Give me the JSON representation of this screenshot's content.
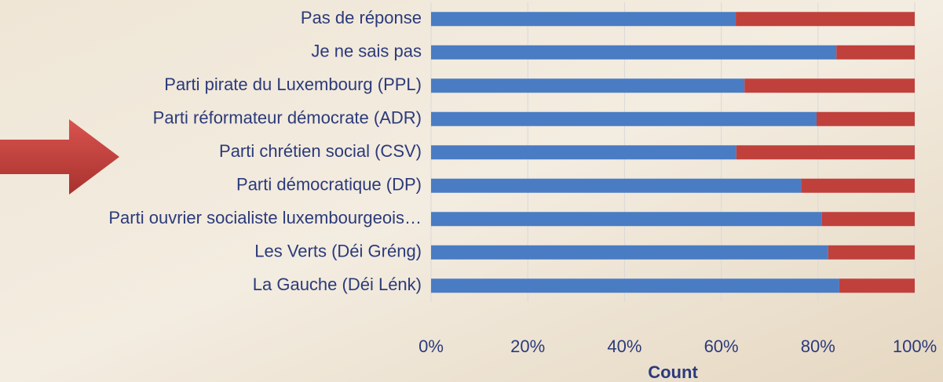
{
  "chart_data": {
    "type": "bar",
    "orientation": "horizontal",
    "stacked": true,
    "categories": [
      "Pas de réponse",
      "Je ne sais pas",
      "Parti pirate du Luxembourg (PPL)",
      "Parti réformateur démocrate (ADR)",
      "Parti chrétien social (CSV)",
      "Parti démocratique (DP)",
      "Parti ouvrier socialiste luxembourgeois…",
      "Les Verts (Déi Gréng)",
      "La Gauche (Déi Lénk)"
    ],
    "series": [
      {
        "color": "#4a7cc4",
        "values": [
          63.0,
          83.8,
          64.8,
          79.7,
          63.1,
          76.5,
          80.8,
          82.1,
          84.4
        ]
      },
      {
        "color": "#c0403c",
        "values": [
          37.0,
          16.2,
          35.2,
          20.3,
          36.9,
          23.5,
          19.2,
          17.9,
          15.6
        ]
      }
    ],
    "xlabel": "Count",
    "xlim": [
      0,
      100
    ],
    "xticks": [
      {
        "value": 0,
        "label": "0%"
      },
      {
        "value": 20,
        "label": "20%"
      },
      {
        "value": 40,
        "label": "40%"
      },
      {
        "value": 60,
        "label": "60%"
      },
      {
        "value": 80,
        "label": "80%"
      },
      {
        "value": 100,
        "label": "100%"
      }
    ],
    "grid": true
  }
}
